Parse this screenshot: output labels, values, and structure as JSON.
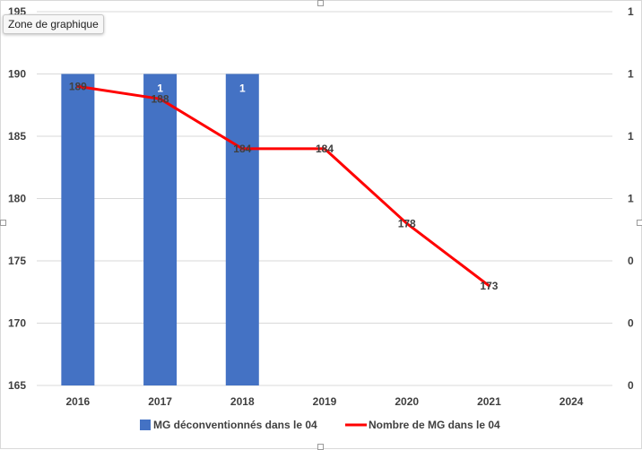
{
  "tooltip": "Zone de graphique",
  "chart_data": {
    "type": "bar+line",
    "categories": [
      "2016",
      "2017",
      "2018",
      "2019",
      "2020",
      "2021",
      "2024"
    ],
    "series": [
      {
        "name": "MG déconventionnés dans le 04",
        "type": "bar",
        "axis": "secondary",
        "color": "#4472c4",
        "values": [
          1,
          1,
          1,
          null,
          null,
          null,
          null
        ],
        "labels": [
          "",
          "1",
          "1",
          "",
          "",
          "",
          ""
        ]
      },
      {
        "name": "Nombre de MG dans le 04",
        "type": "line",
        "axis": "primary",
        "color": "#ff0000",
        "values": [
          189,
          188,
          184,
          184,
          178,
          173,
          null
        ],
        "labels": [
          "189",
          "188",
          "184",
          "184",
          "178",
          "173",
          ""
        ]
      }
    ],
    "y_primary": {
      "min": 165,
      "max": 195,
      "ticks": [
        "165",
        "170",
        "175",
        "180",
        "185",
        "190",
        "195"
      ]
    },
    "y_secondary": {
      "min": 0,
      "max": 1.2,
      "ticks": [
        "0",
        "0",
        "0",
        "1",
        "1",
        "1",
        "1"
      ]
    },
    "grid": true,
    "legend_position": "bottom"
  }
}
